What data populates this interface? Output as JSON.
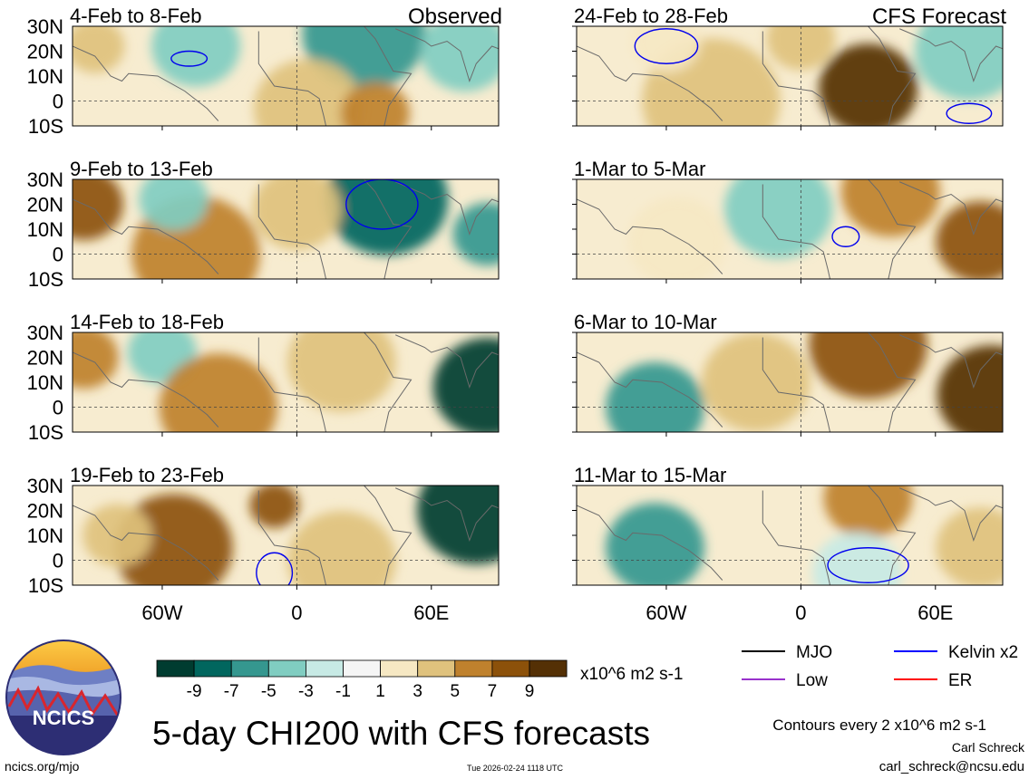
{
  "figure": {
    "title": "5-day CHI200 with CFS forecasts",
    "left_column_label": "Observed",
    "right_column_label": "CFS Forecast",
    "site": "ncics.org/mjo",
    "timestamp": "Tue 2026-02-24 1118 UTC",
    "author": "Carl Schreck",
    "email": "carl_schreck@ncsu.edu",
    "contours_note": "Contours every 2 x10^6 m2 s-1",
    "logo_text": "NCICS"
  },
  "colorbar": {
    "unit": "x10^6 m2 s-1",
    "tick_labels": [
      "-9",
      "-7",
      "-5",
      "-3",
      "-1",
      "1",
      "3",
      "5",
      "7",
      "9"
    ],
    "colors": [
      "#003c30",
      "#01665e",
      "#35978f",
      "#80cdc1",
      "#c7eae5",
      "#f5f5f5",
      "#f6e8c3",
      "#dfc27d",
      "#bf812d",
      "#8c510a",
      "#543005"
    ]
  },
  "legend": {
    "items": [
      {
        "label": "MJO",
        "color": "#000000"
      },
      {
        "label": "Kelvin x2",
        "color": "#0000ff"
      },
      {
        "label": "Low",
        "color": "#9932cc"
      },
      {
        "label": "ER",
        "color": "#ff0000"
      }
    ]
  },
  "chart_data": {
    "type": "heatmap",
    "variable": "200-hPa velocity potential (CHI200) anomaly, 5-day mean",
    "lat_range": [
      -10,
      30
    ],
    "lon_range": [
      -100,
      90
    ],
    "y_tick_labels": [
      "30N",
      "20N",
      "10N",
      "0",
      "10S"
    ],
    "x_tick_labels": [
      "60W",
      "0",
      "60E"
    ],
    "x_tick_values": [
      -60,
      0,
      60
    ],
    "y_tick_values": [
      30,
      20,
      10,
      0,
      -10
    ],
    "panels": [
      {
        "period": "4-Feb to 8-Feb",
        "source": "Observed",
        "field_anomalies": [
          {
            "lon": -45,
            "lat": 22,
            "value": -2,
            "r": 18
          },
          {
            "lon": 30,
            "lat": 27,
            "value": -5,
            "r": 25
          },
          {
            "lon": 5,
            "lat": -3,
            "value": 3,
            "r": 22
          },
          {
            "lon": 35,
            "lat": -5,
            "value": 5,
            "r": 14
          },
          {
            "lon": 75,
            "lat": 20,
            "value": -3,
            "r": 18
          },
          {
            "lon": -90,
            "lat": 22,
            "value": 3,
            "r": 12
          }
        ],
        "kelvin_contours": [
          {
            "lon": -48,
            "lat": 17,
            "dlon": 8,
            "dlat": 3,
            "sign": "positive"
          }
        ]
      },
      {
        "period": "9-Feb to 13-Feb",
        "source": "Observed",
        "field_anomalies": [
          {
            "lon": -95,
            "lat": 20,
            "value": 7,
            "r": 16
          },
          {
            "lon": 40,
            "lat": 22,
            "value": -7,
            "r": 25
          },
          {
            "lon": 85,
            "lat": 8,
            "value": -5,
            "r": 14
          },
          {
            "lon": -45,
            "lat": 0,
            "value": 5,
            "r": 26
          },
          {
            "lon": -55,
            "lat": 22,
            "value": -2,
            "r": 14
          },
          {
            "lon": 0,
            "lat": 18,
            "value": 3,
            "r": 18
          }
        ],
        "kelvin_contours": [
          {
            "lon": 38,
            "lat": 20,
            "dlon": 16,
            "dlat": 10,
            "sign": "positive"
          }
        ]
      },
      {
        "period": "14-Feb to 18-Feb",
        "source": "Observed",
        "field_anomalies": [
          {
            "lon": 85,
            "lat": 8,
            "value": -9,
            "r": 22
          },
          {
            "lon": -95,
            "lat": 20,
            "value": 5,
            "r": 14
          },
          {
            "lon": -60,
            "lat": 22,
            "value": -3,
            "r": 14
          },
          {
            "lon": -35,
            "lat": 0,
            "value": 5,
            "r": 24
          },
          {
            "lon": 20,
            "lat": 18,
            "value": 3,
            "r": 22
          }
        ],
        "kelvin_contours": []
      },
      {
        "period": "19-Feb to 23-Feb",
        "source": "Observed",
        "field_anomalies": [
          {
            "lon": 80,
            "lat": 20,
            "value": -9,
            "r": 24
          },
          {
            "lon": -55,
            "lat": 5,
            "value": 7,
            "r": 24
          },
          {
            "lon": -10,
            "lat": 22,
            "value": 7,
            "r": 10
          },
          {
            "lon": 20,
            "lat": 0,
            "value": 3,
            "r": 22
          },
          {
            "lon": -80,
            "lat": 10,
            "value": 3,
            "r": 14
          }
        ],
        "kelvin_contours": [
          {
            "lon": -10,
            "lat": -5,
            "dlon": 8,
            "dlat": 8,
            "sign": "positive"
          }
        ]
      },
      {
        "period": "24-Feb to 28-Feb",
        "source": "CFS Forecast",
        "field_anomalies": [
          {
            "lon": 30,
            "lat": 5,
            "value": 9,
            "r": 20
          },
          {
            "lon": -40,
            "lat": 0,
            "value": 3,
            "r": 28
          },
          {
            "lon": 75,
            "lat": 20,
            "value": -3,
            "r": 22
          },
          {
            "lon": -60,
            "lat": 24,
            "value": 1,
            "r": 14
          },
          {
            "lon": 0,
            "lat": 25,
            "value": 3,
            "r": 14
          }
        ],
        "kelvin_contours": [
          {
            "lon": -60,
            "lat": 22,
            "dlon": 14,
            "dlat": 7,
            "sign": "positive"
          },
          {
            "lon": 75,
            "lat": -5,
            "dlon": 10,
            "dlat": 4,
            "sign": "positive"
          }
        ]
      },
      {
        "period": "1-Mar to 5-Mar",
        "source": "CFS Forecast",
        "field_anomalies": [
          {
            "lon": 80,
            "lat": 5,
            "value": 7,
            "r": 18
          },
          {
            "lon": 40,
            "lat": 25,
            "value": 5,
            "r": 20
          },
          {
            "lon": -10,
            "lat": 18,
            "value": -3,
            "r": 22
          },
          {
            "lon": -55,
            "lat": 5,
            "value": 1,
            "r": 20
          }
        ],
        "kelvin_contours": [
          {
            "lon": 20,
            "lat": 7,
            "dlon": 6,
            "dlat": 4,
            "sign": "positive"
          }
        ]
      },
      {
        "period": "6-Mar to 10-Mar",
        "source": "CFS Forecast",
        "field_anomalies": [
          {
            "lon": 85,
            "lat": 5,
            "value": 9,
            "r": 22
          },
          {
            "lon": 30,
            "lat": 25,
            "value": 7,
            "r": 24
          },
          {
            "lon": -65,
            "lat": 0,
            "value": -5,
            "r": 20
          },
          {
            "lon": -20,
            "lat": 10,
            "value": 3,
            "r": 22
          }
        ],
        "kelvin_contours": []
      },
      {
        "period": "11-Mar to 15-Mar",
        "source": "CFS Forecast",
        "field_anomalies": [
          {
            "lon": -65,
            "lat": 5,
            "value": -5,
            "r": 20
          },
          {
            "lon": 30,
            "lat": 25,
            "value": 5,
            "r": 18
          },
          {
            "lon": 80,
            "lat": 5,
            "value": 3,
            "r": 18
          },
          {
            "lon": 25,
            "lat": -5,
            "value": -1,
            "r": 18
          }
        ],
        "kelvin_contours": [
          {
            "lon": 30,
            "lat": -2,
            "dlon": 18,
            "dlat": 7,
            "sign": "positive"
          }
        ]
      }
    ]
  }
}
